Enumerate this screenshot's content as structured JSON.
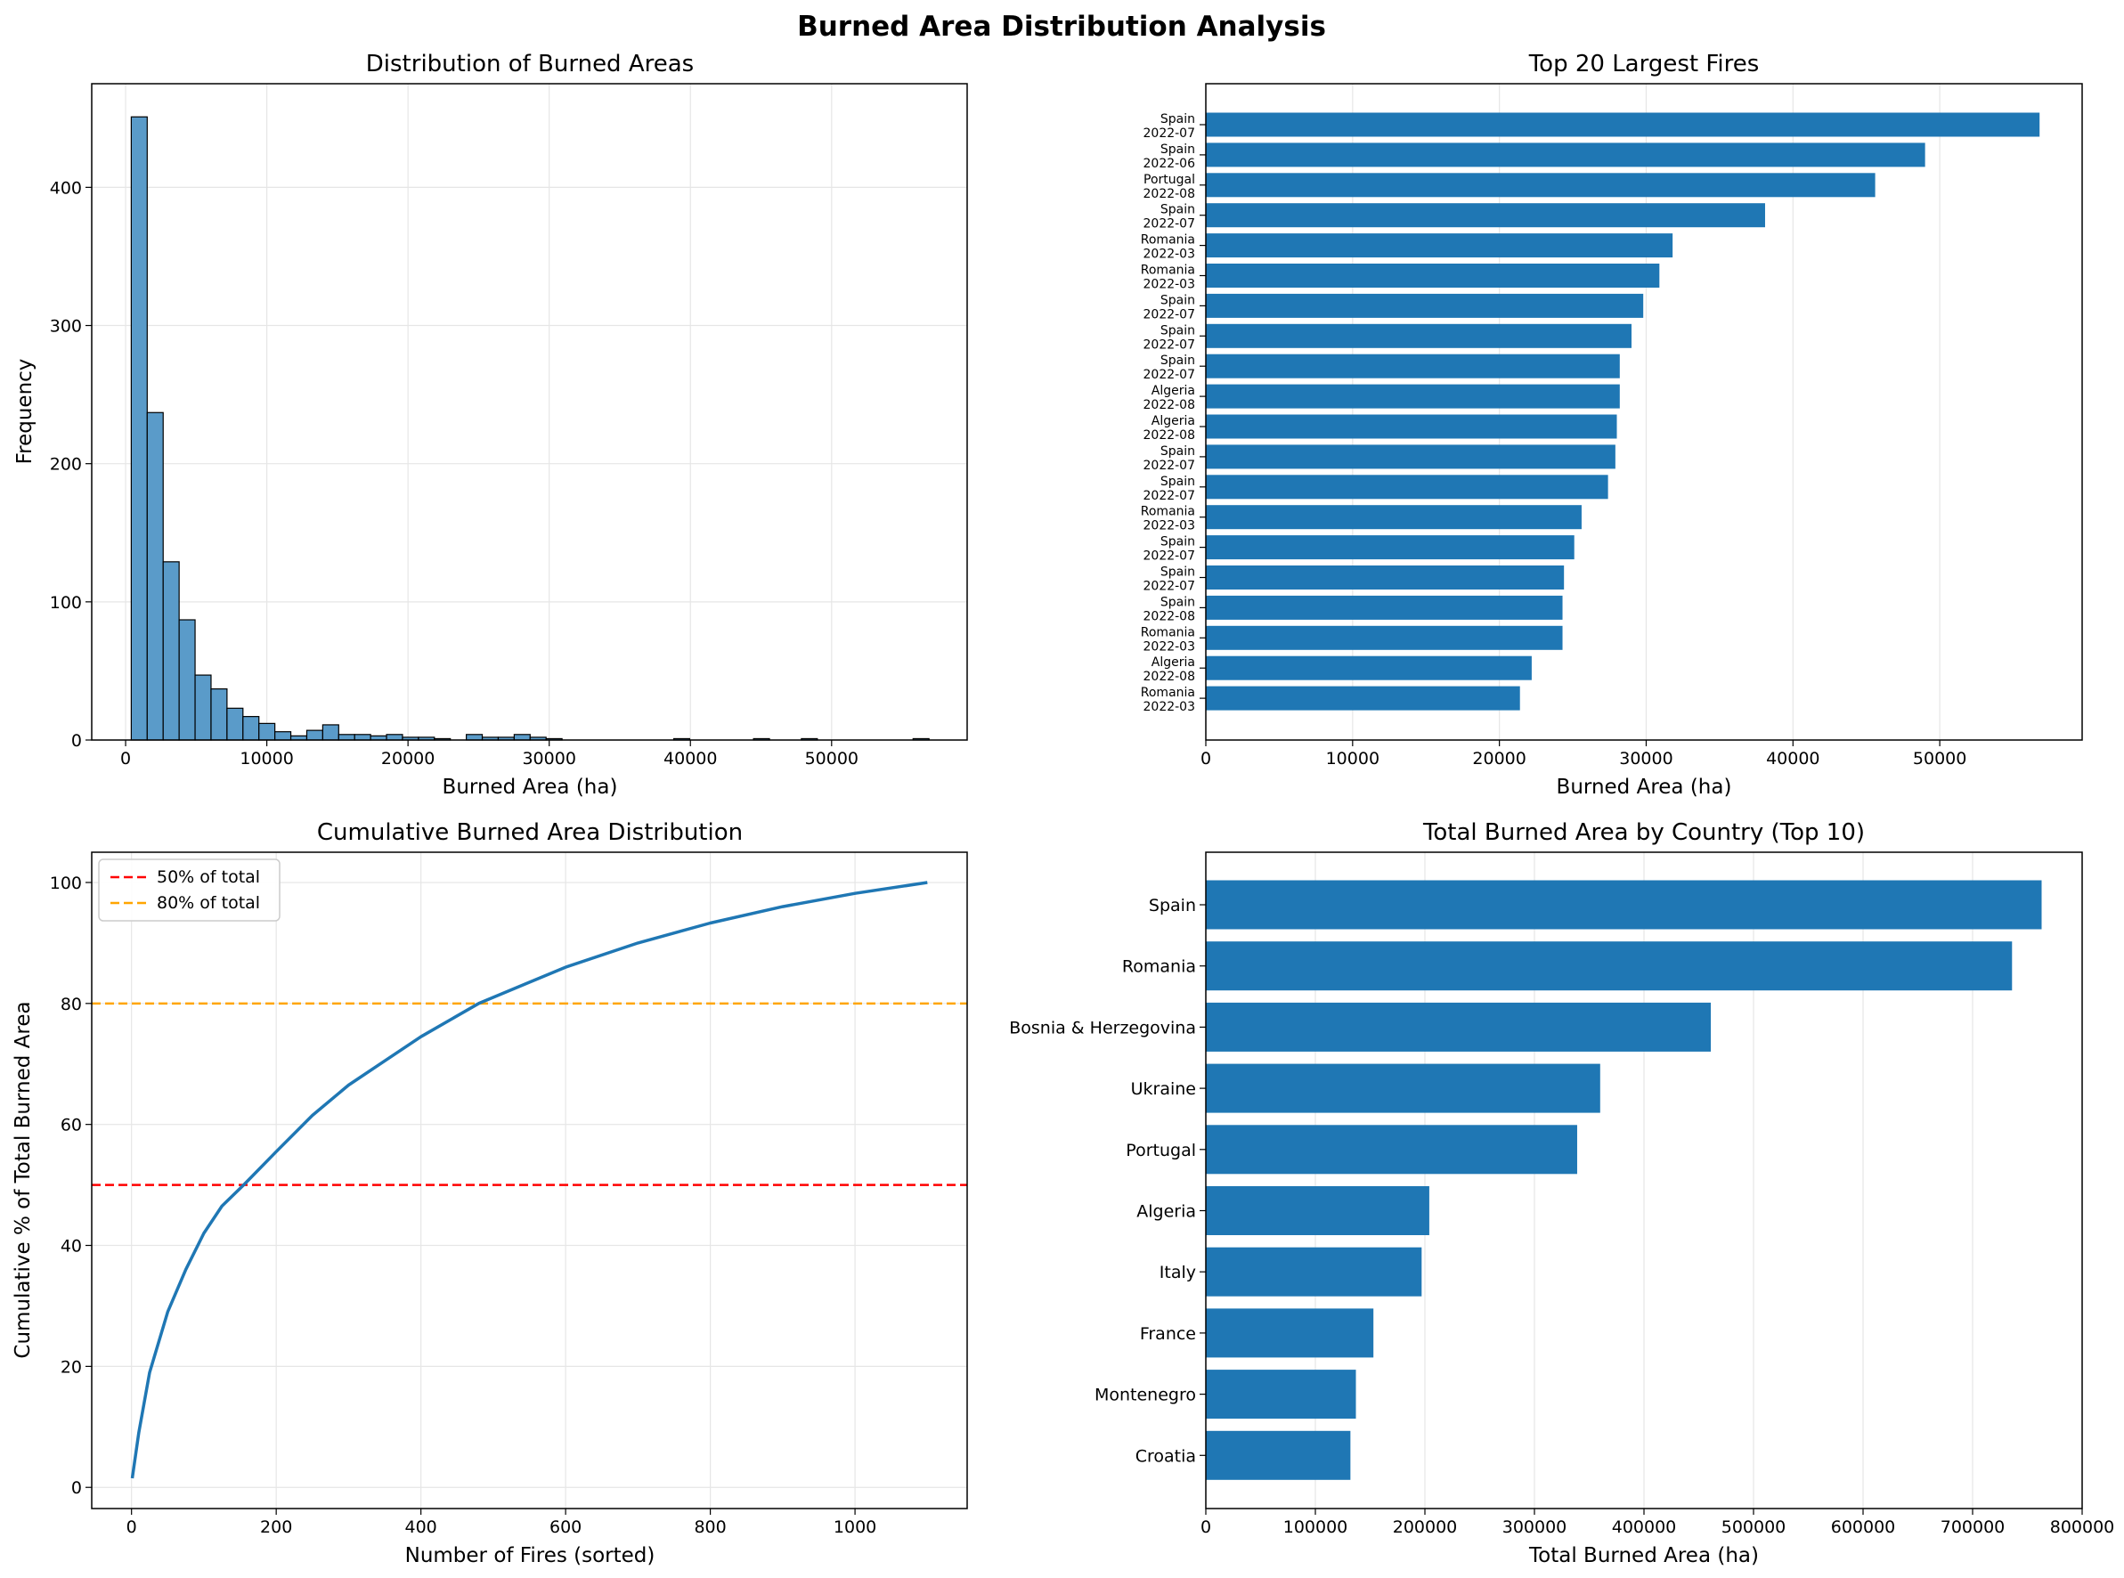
{
  "figure": {
    "title": "Burned Area Distribution Analysis"
  },
  "colors": {
    "bar": "#1f77b4",
    "hist_fill": "#5a9bc9",
    "hist_edge": "#000000",
    "line": "#1f77b4",
    "ref_50": "#ff0000",
    "ref_80": "#ffa500",
    "grid": "#e6e6e6"
  },
  "chart_data": [
    {
      "id": "hist",
      "type": "bar",
      "title": "Distribution of Burned Areas",
      "xlabel": "Burned Area (ha)",
      "ylabel": "Frequency",
      "xlim": [
        -2400,
        59600
      ],
      "ylim": [
        0,
        475
      ],
      "xticks": [
        0,
        10000,
        20000,
        30000,
        40000,
        50000
      ],
      "xtick_labels": [
        "0",
        "10000",
        "20000",
        "30000",
        "40000",
        "50000"
      ],
      "yticks": [
        0,
        100,
        200,
        300,
        400
      ],
      "ytick_labels": [
        "0",
        "100",
        "200",
        "300",
        "400"
      ],
      "bin_start": 400,
      "bin_width": 1130,
      "counts": [
        451,
        237,
        129,
        87,
        47,
        37,
        23,
        17,
        12,
        6,
        3,
        7,
        11,
        4,
        4,
        3,
        4,
        2,
        2,
        1,
        0,
        4,
        2,
        2,
        4,
        2,
        1,
        0,
        0,
        0,
        0,
        0,
        0,
        0,
        1,
        0,
        0,
        0,
        0,
        1,
        0,
        0,
        1,
        0,
        0,
        0,
        0,
        0,
        0,
        1
      ],
      "grid": true
    },
    {
      "id": "top20",
      "type": "bar",
      "orientation": "horizontal",
      "title": "Top 20 Largest Fires",
      "xlabel": "Burned Area (ha)",
      "ylabel": "",
      "xlim": [
        0,
        59700
      ],
      "xticks": [
        0,
        10000,
        20000,
        30000,
        40000,
        50000
      ],
      "xtick_labels": [
        "0",
        "10000",
        "20000",
        "30000",
        "40000",
        "50000"
      ],
      "categories": [
        [
          "Spain",
          "2022-07"
        ],
        [
          "Spain",
          "2022-06"
        ],
        [
          "Portugal",
          "2022-08"
        ],
        [
          "Spain",
          "2022-07"
        ],
        [
          "Romania",
          "2022-03"
        ],
        [
          "Romania",
          "2022-03"
        ],
        [
          "Spain",
          "2022-07"
        ],
        [
          "Spain",
          "2022-07"
        ],
        [
          "Spain",
          "2022-07"
        ],
        [
          "Algeria",
          "2022-08"
        ],
        [
          "Algeria",
          "2022-08"
        ],
        [
          "Spain",
          "2022-07"
        ],
        [
          "Spain",
          "2022-07"
        ],
        [
          "Romania",
          "2022-03"
        ],
        [
          "Spain",
          "2022-07"
        ],
        [
          "Spain",
          "2022-07"
        ],
        [
          "Spain",
          "2022-08"
        ],
        [
          "Romania",
          "2022-03"
        ],
        [
          "Algeria",
          "2022-08"
        ],
        [
          "Romania",
          "2022-03"
        ]
      ],
      "values": [
        56800,
        49000,
        45600,
        38100,
        31800,
        30900,
        29800,
        29000,
        28200,
        28200,
        28000,
        27900,
        27400,
        25600,
        25100,
        24400,
        24300,
        24300,
        22200,
        21400
      ],
      "grid": true
    },
    {
      "id": "cumulative",
      "type": "line",
      "title": "Cumulative Burned Area Distribution",
      "xlabel": "Number of Fires (sorted)",
      "ylabel": "Cumulative % of Total Burned Area",
      "xlim": [
        -55,
        1155
      ],
      "ylim": [
        -3.5,
        105
      ],
      "xticks": [
        0,
        200,
        400,
        600,
        800,
        1000
      ],
      "xtick_labels": [
        "0",
        "200",
        "400",
        "600",
        "800",
        "1000"
      ],
      "yticks": [
        0,
        20,
        40,
        60,
        80,
        100
      ],
      "ytick_labels": [
        "0",
        "20",
        "40",
        "60",
        "80",
        "100"
      ],
      "x": [
        1,
        10,
        25,
        50,
        75,
        100,
        125,
        155,
        200,
        250,
        300,
        350,
        400,
        480,
        550,
        600,
        700,
        800,
        900,
        1000,
        1100
      ],
      "y": [
        1.5,
        9,
        19,
        29,
        36,
        42,
        46.5,
        50,
        55.5,
        61.5,
        66.5,
        70.5,
        74.5,
        80,
        83.5,
        86,
        90,
        93.3,
        96,
        98.2,
        100
      ],
      "hlines": [
        {
          "y": 50,
          "label": "50% of total",
          "color": "#ff0000"
        },
        {
          "y": 80,
          "label": "80% of total",
          "color": "#ffa500"
        }
      ],
      "legend": "top-left",
      "grid": true
    },
    {
      "id": "country",
      "type": "bar",
      "orientation": "horizontal",
      "title": "Total Burned Area by Country (Top 10)",
      "xlabel": "Total Burned Area (ha)",
      "ylabel": "",
      "xlim": [
        0,
        800000
      ],
      "xticks": [
        0,
        100000,
        200000,
        300000,
        400000,
        500000,
        600000,
        700000,
        800000
      ],
      "xtick_labels": [
        "0",
        "100000",
        "200000",
        "300000",
        "400000",
        "500000",
        "600000",
        "700000",
        "800000"
      ],
      "categories": [
        "Spain",
        "Romania",
        "Bosnia & Herzegovina",
        "Ukraine",
        "Portugal",
        "Algeria",
        "Italy",
        "France",
        "Montenegro",
        "Croatia"
      ],
      "values": [
        763000,
        736000,
        461000,
        360000,
        339000,
        204000,
        197000,
        153000,
        137000,
        132000
      ],
      "grid": true
    }
  ]
}
